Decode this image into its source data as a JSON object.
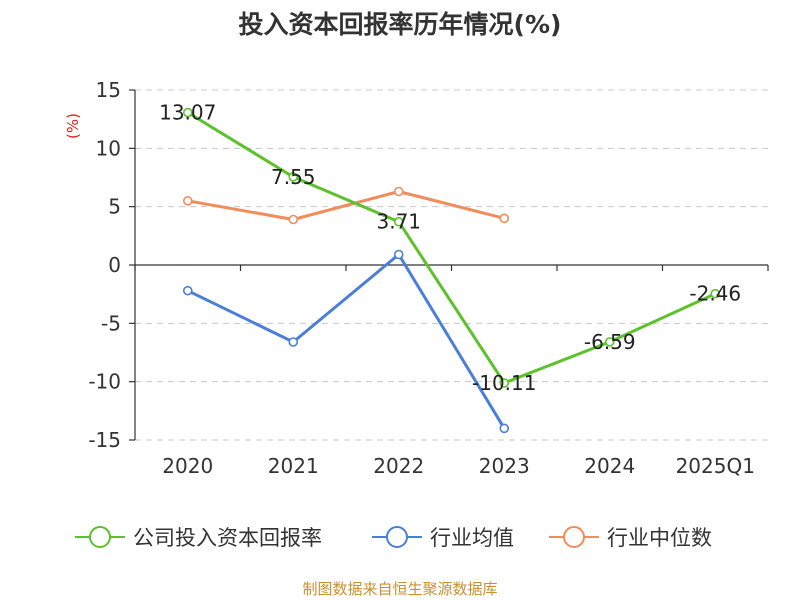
{
  "source": "制图数据来自恒生聚源数据库",
  "chart_data": {
    "type": "line",
    "title": "投入资本回报率历年情况(%)",
    "ylabel": "(%)",
    "xlabel": "",
    "categories": [
      "2020",
      "2021",
      "2022",
      "2023",
      "2024",
      "2025Q1"
    ],
    "ylim": [
      -15,
      15
    ],
    "yticks": [
      15,
      10,
      5,
      0,
      -5,
      -10,
      -15
    ],
    "grid": true,
    "legend_position": "bottom",
    "series": [
      {
        "name": "公司投入资本回报率",
        "color": "#5cc22b",
        "values": [
          13.07,
          7.55,
          3.71,
          -10.11,
          -6.59,
          -2.46
        ],
        "labels": [
          "13.07",
          "7.55",
          "3.71",
          "-10.11",
          "-6.59",
          "-2.46"
        ]
      },
      {
        "name": "行业均值",
        "color": "#4a7fd9",
        "values": [
          -2.2,
          -6.6,
          0.9,
          -14.0,
          null,
          null
        ],
        "labels": []
      },
      {
        "name": "行业中位数",
        "color": "#f28c5a",
        "values": [
          5.5,
          3.9,
          6.3,
          4.0,
          null,
          null
        ],
        "labels": []
      }
    ]
  }
}
